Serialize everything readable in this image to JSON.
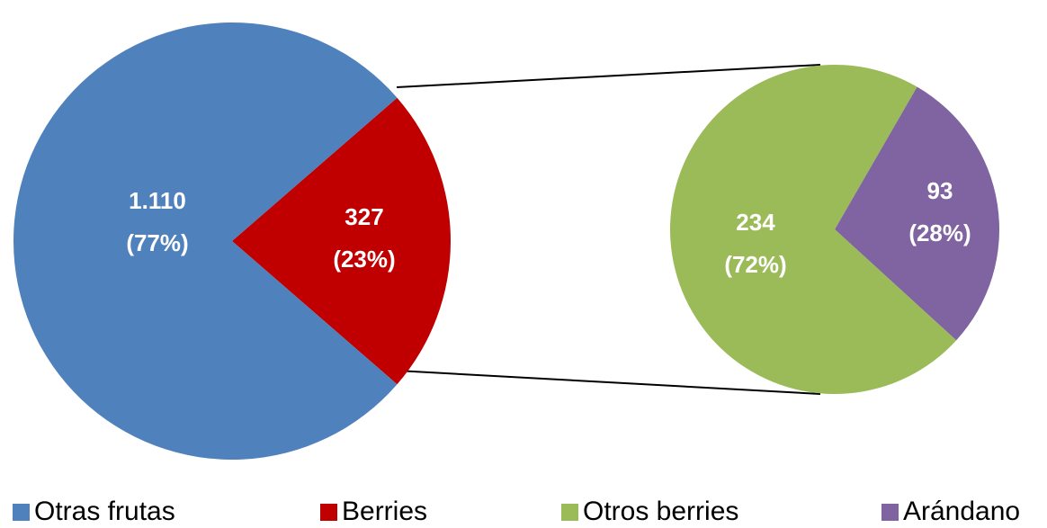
{
  "chart_data": [
    {
      "type": "pie",
      "categories": [
        "Otras frutas",
        "Berries"
      ],
      "values": [
        1110,
        327
      ],
      "colors": [
        "#4f81bd",
        "#c00000"
      ],
      "value_labels": [
        [
          "1.110",
          "(77%)"
        ],
        [
          "327",
          "(23%)"
        ]
      ]
    },
    {
      "type": "pie",
      "categories": [
        "Otros berries",
        "Arándano"
      ],
      "values": [
        234,
        93
      ],
      "colors": [
        "#9bbb59",
        "#8064a2"
      ],
      "value_labels": [
        [
          "234",
          "(72%)"
        ],
        [
          "93",
          "(28%)"
        ]
      ]
    }
  ]
}
